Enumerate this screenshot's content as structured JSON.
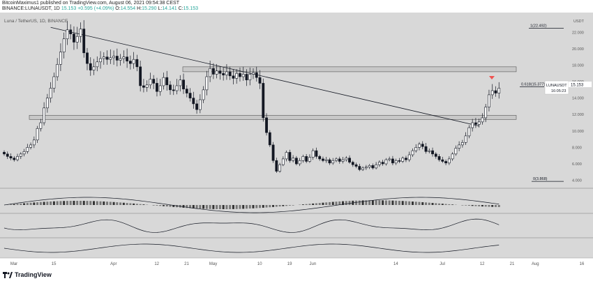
{
  "header": {
    "published": "BitcoinMaximus1 published on TradingView.com, August 06, 2021 09:54:38 CEST",
    "symbol": "BINANCE:LUNAUSDT, 1D",
    "price": "15.153",
    "change": "+0.595 (+4.09%)",
    "ohlc_o_label": "O:",
    "ohlc_o": "14.554",
    "ohlc_h_label": "H:",
    "ohlc_h": "15.290",
    "ohlc_l_label": "L:",
    "ohlc_l": "14.141",
    "ohlc_c_label": "C:",
    "ohlc_c": "15.153"
  },
  "footer": {
    "brand": "TradingView"
  },
  "colors": {
    "up": "#26a69a",
    "panel_bg": "#d8d8d8",
    "candle": "#131722",
    "trendline": "#131722",
    "zone": "#c8c8c8",
    "marker": "#ef5350"
  },
  "chart_data": {
    "type": "candlestick",
    "title": "Luna / TetherUS, 1D, BINANCE",
    "currency": "USDT",
    "price_label": "LUNAUSDT",
    "last_price": 15.153,
    "countdown": "16:05:23",
    "x_ticks": [
      "Mar",
      "15",
      "Apr",
      "12",
      "21",
      "May",
      "10",
      "19",
      "Jun",
      "14",
      "Jul",
      "12",
      "21",
      "Aug",
      "16"
    ],
    "y_ticks": [
      4.0,
      6.0,
      8.0,
      10.0,
      12.0,
      14.0,
      16.0,
      18.0,
      20.0,
      22.0
    ],
    "ylim": [
      3.2,
      24.4
    ],
    "fib_levels": [
      {
        "label": "1(22.492)",
        "value": 22.492
      },
      {
        "label": "0.618(15.377)",
        "value": 15.377
      },
      {
        "label": "0(3.868)",
        "value": 3.868
      }
    ],
    "resistance_zone": [
      17.2,
      17.8
    ],
    "support_zone": [
      11.4,
      11.9
    ],
    "trendline": [
      {
        "i": 14,
        "v": 22.6
      },
      {
        "i": 143,
        "v": 10.6
      }
    ],
    "closes": [
      7.2,
      6.9,
      6.7,
      6.5,
      6.9,
      7.2,
      7.5,
      8.0,
      8.3,
      8.9,
      10.3,
      11.0,
      12.8,
      14.0,
      15.2,
      16.6,
      18.1,
      19.6,
      21.2,
      22.3,
      21.8,
      20.8,
      21.5,
      22.4,
      19.5,
      18.2,
      17.4,
      17.8,
      18.4,
      18.8,
      19.0,
      18.7,
      18.9,
      19.1,
      18.6,
      18.8,
      19.0,
      18.5,
      18.2,
      18.7,
      17.8,
      15.5,
      15.3,
      15.6,
      16.3,
      15.8,
      14.8,
      15.5,
      16.5,
      15.6,
      15.0,
      14.9,
      15.5,
      16.2,
      15.1,
      14.6,
      14.0,
      13.3,
      12.6,
      13.8,
      15.0,
      16.6,
      17.6,
      16.9,
      17.3,
      17.0,
      16.8,
      17.2,
      16.7,
      16.4,
      17.0,
      16.6,
      16.9,
      16.2,
      16.9,
      17.1,
      16.5,
      15.8,
      11.6,
      9.8,
      8.3,
      6.4,
      5.1,
      5.9,
      6.6,
      7.4,
      6.4,
      6.7,
      6.0,
      6.4,
      6.9,
      6.3,
      6.8,
      7.6,
      6.9,
      6.6,
      6.4,
      6.5,
      6.1,
      6.4,
      6.6,
      6.3,
      6.5,
      6.7,
      6.2,
      5.9,
      5.7,
      5.3,
      5.5,
      5.6,
      5.8,
      5.5,
      5.9,
      6.2,
      6.0,
      6.5,
      6.6,
      6.1,
      6.4,
      6.3,
      6.7,
      6.5,
      7.1,
      7.6,
      8.0,
      8.4,
      8.1,
      7.5,
      7.6,
      7.2,
      6.9,
      6.5,
      6.3,
      6.1,
      6.6,
      7.2,
      7.9,
      8.3,
      8.6,
      9.4,
      10.4,
      11.0,
      10.8,
      11.1,
      11.6,
      12.9,
      14.4,
      14.9,
      14.6,
      15.2
    ]
  }
}
